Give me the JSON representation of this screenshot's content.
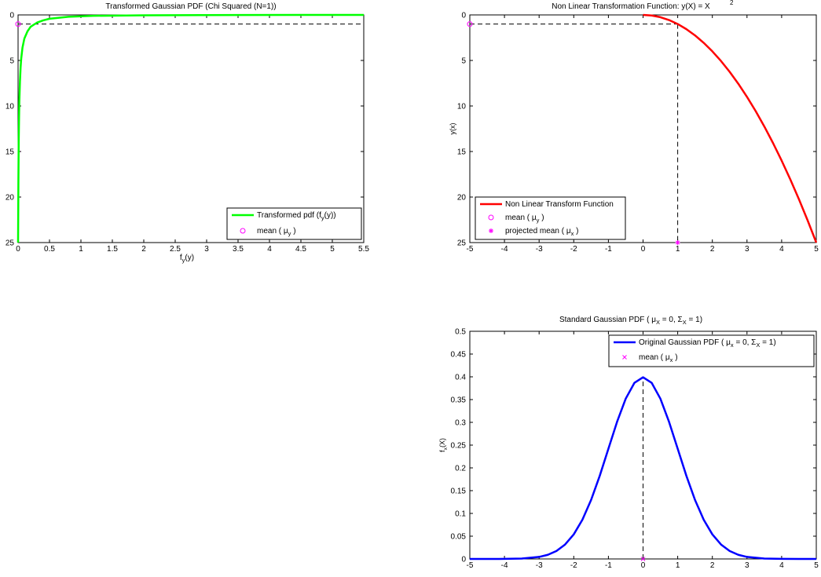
{
  "chart_data": [
    {
      "id": "chi",
      "type": "line",
      "title": "Transformed Gaussian PDF (Chi Squared (N=1))",
      "xlabel": {
        "main": "f",
        "sub": "y",
        "tail": "(y)"
      },
      "ylabel": "",
      "xlim": [
        0,
        5.5
      ],
      "ylim": [
        0,
        25
      ],
      "y_reversed": true,
      "xticks": [
        0,
        0.5,
        1,
        1.5,
        2,
        2.5,
        3,
        3.5,
        4,
        4.5,
        5,
        5.5
      ],
      "xticklabels": [
        "0",
        "0.5",
        "1",
        "1.5",
        "2",
        "2.5",
        "3",
        "3.5",
        "4",
        "4.5",
        "5",
        "5.5"
      ],
      "yticks": [
        0,
        5,
        10,
        15,
        20,
        25
      ],
      "yticklabels": [
        "0",
        "5",
        "10",
        "15",
        "20",
        "25"
      ],
      "grid": false,
      "legend_placement": "bottom-right",
      "series": [
        {
          "name": "Transformed pdf (f y(y))",
          "color": "#00ff00",
          "kind": "line",
          "x": [
            5.5,
            3.5,
            2.0,
            1.2,
            0.8,
            0.5,
            0.4,
            0.3,
            0.2,
            0.15,
            0.1,
            0.07,
            0.05,
            0.04,
            0.03,
            0.02,
            0.015,
            0.01,
            0.005,
            0.0
          ],
          "y": [
            0.0,
            0.01,
            0.04,
            0.1,
            0.2,
            0.42,
            0.6,
            0.85,
            1.3,
            1.8,
            2.6,
            3.6,
            4.8,
            5.8,
            7.3,
            9.5,
            11.5,
            14,
            18.5,
            25
          ]
        },
        {
          "name": "mean ( μ y)",
          "color": "#ff00ff",
          "kind": "circle",
          "x": [
            0
          ],
          "y": [
            1
          ]
        }
      ],
      "reference_lines": [
        {
          "type": "horizontal",
          "y": 1,
          "x_from": 0,
          "x_to": 5.5
        }
      ]
    },
    {
      "id": "nlt",
      "type": "line",
      "title": "Non Linear Transformation Function: y(X) = X",
      "title_sup": "2",
      "xlabel": "",
      "ylabel": "y(x)",
      "xlim": [
        -5,
        5
      ],
      "ylim": [
        0,
        25
      ],
      "y_reversed": true,
      "xticks": [
        -5,
        -4,
        -3,
        -2,
        -1,
        0,
        1,
        2,
        3,
        4,
        5
      ],
      "xticklabels": [
        "-5",
        "-4",
        "-3",
        "-2",
        "-1",
        "0",
        "1",
        "2",
        "3",
        "4",
        "5"
      ],
      "yticks": [
        0,
        5,
        10,
        15,
        20,
        25
      ],
      "yticklabels": [
        "0",
        "5",
        "10",
        "15",
        "20",
        "25"
      ],
      "grid": false,
      "legend_placement": "bottom-left",
      "series": [
        {
          "name": "Non Linear Transform Function",
          "color": "#ff0000",
          "kind": "line",
          "x": [
            0,
            0.25,
            0.5,
            0.75,
            1,
            1.25,
            1.5,
            1.75,
            2,
            2.25,
            2.5,
            2.75,
            3,
            3.25,
            3.5,
            3.75,
            4,
            4.25,
            4.5,
            4.75,
            5
          ],
          "y": [
            0,
            0.0625,
            0.25,
            0.5625,
            1,
            1.5625,
            2.25,
            3.0625,
            4,
            5.0625,
            6.25,
            7.5625,
            9,
            10.5625,
            12.25,
            14.0625,
            16,
            18.0625,
            20.25,
            22.5625,
            25
          ]
        },
        {
          "name": "mean ( μ y)",
          "color": "#ff00ff",
          "kind": "circle",
          "x": [
            -5
          ],
          "y": [
            1
          ]
        },
        {
          "name": "projected mean ( μ x)",
          "color": "#ff00ff",
          "kind": "asterisk",
          "x": [
            1
          ],
          "y": [
            25
          ]
        }
      ],
      "reference_lines": [
        {
          "type": "horizontal",
          "y": 1,
          "x_from": -5,
          "x_to": 1
        },
        {
          "type": "vertical",
          "x": 1,
          "y_from": 1,
          "y_to": 25
        }
      ]
    },
    {
      "id": "gauss",
      "type": "line",
      "title": "Standard Gaussian PDF ( μ X = 0, Σ X = 1)",
      "xlabel": "",
      "ylabel": {
        "main": "f",
        "sub": "x",
        "tail": "(X)"
      },
      "xlim": [
        -5,
        5
      ],
      "ylim": [
        0,
        0.5
      ],
      "y_reversed": false,
      "xticks": [
        -5,
        -4,
        -3,
        -2,
        -1,
        0,
        1,
        2,
        3,
        4,
        5
      ],
      "xticklabels": [
        "-5",
        "-4",
        "-3",
        "-2",
        "-1",
        "0",
        "1",
        "2",
        "3",
        "4",
        "5"
      ],
      "yticks": [
        0,
        0.05,
        0.1,
        0.15,
        0.2,
        0.25,
        0.3,
        0.35,
        0.4,
        0.45,
        0.5
      ],
      "yticklabels": [
        "0",
        "0.05",
        "0.1",
        "0.15",
        "0.2",
        "0.25",
        "0.3",
        "0.35",
        "0.4",
        "0.45",
        "0.5"
      ],
      "grid": false,
      "legend_placement": "top-right",
      "series": [
        {
          "name": "Original Gaussian PDF ( μ x = 0, Σ X = 1)",
          "color": "#0000ff",
          "kind": "line",
          "x": [
            -5,
            -4.5,
            -4,
            -3.5,
            -3,
            -2.75,
            -2.5,
            -2.25,
            -2,
            -1.75,
            -1.5,
            -1.25,
            -1,
            -0.75,
            -0.5,
            -0.25,
            0,
            0.25,
            0.5,
            0.75,
            1,
            1.25,
            1.5,
            1.75,
            2,
            2.25,
            2.5,
            2.75,
            3,
            3.5,
            4,
            4.5,
            5
          ],
          "y": [
            1.5e-06,
            1.6e-05,
            0.000134,
            0.000873,
            0.00443,
            0.00909,
            0.01753,
            0.03174,
            0.05399,
            0.08628,
            0.12952,
            0.18265,
            0.24197,
            0.30114,
            0.35207,
            0.38667,
            0.39894,
            0.38667,
            0.35207,
            0.30114,
            0.24197,
            0.18265,
            0.12952,
            0.08628,
            0.05399,
            0.03174,
            0.01753,
            0.00909,
            0.00443,
            0.000873,
            0.000134,
            1.6e-05,
            1.5e-06
          ]
        },
        {
          "name": "mean ( μ x)",
          "color": "#ff00ff",
          "kind": "cross",
          "x": [
            0
          ],
          "y": [
            0
          ]
        }
      ],
      "reference_lines": [
        {
          "type": "vertical",
          "x": 0,
          "y_from": 0,
          "y_to": 0.4
        }
      ]
    }
  ],
  "legends": {
    "chi": [
      {
        "style": "line",
        "color": "#00ff00",
        "text": "Transformed pdf (f",
        "sub": "y",
        "tail": "(y))"
      },
      {
        "style": "circle",
        "color": "#ff00ff",
        "text": "mean ( μ",
        "sub": "y",
        "tail": ")"
      }
    ],
    "nlt": [
      {
        "style": "line",
        "color": "#ff0000",
        "text": "Non Linear Transform Function",
        "sub": "",
        "tail": ""
      },
      {
        "style": "circle",
        "color": "#ff00ff",
        "text": "mean ( μ",
        "sub": "y",
        "tail": ")"
      },
      {
        "style": "asterisk",
        "color": "#ff00ff",
        "text": "projected mean ( μ",
        "sub": "x",
        "tail": ")"
      }
    ],
    "gauss": [
      {
        "style": "line",
        "color": "#0000ff",
        "text": "Original Gaussian PDF ( μ",
        "sub": "x",
        "tail": "= 0, Σ",
        "sub2": "X",
        "tail2": "= 1)"
      },
      {
        "style": "cross",
        "color": "#ff00ff",
        "text": "mean ( μ",
        "sub": "x",
        "tail": ")"
      }
    ]
  },
  "gauss_title_parts": {
    "a": "Standard Gaussian PDF ( μ",
    "sub1": "X",
    "b": "= 0, Σ",
    "sub2": "X",
    "c": "= 1)"
  }
}
